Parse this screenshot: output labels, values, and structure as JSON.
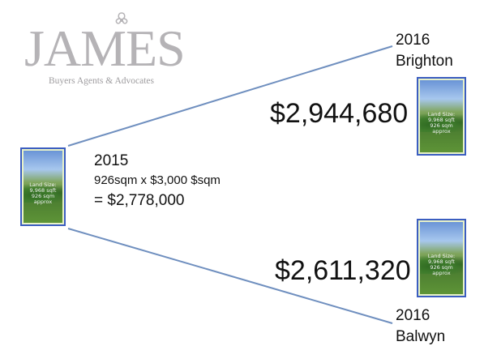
{
  "logo": {
    "wordmark": "JAMES",
    "tagline": "Buyers Agents & Advocates",
    "ornament": "ornament-icon"
  },
  "thumbnail": {
    "text_lines": [
      "Land Size:",
      "9,968 sqft",
      "926 sqm",
      "approx"
    ]
  },
  "source": {
    "year": "2015",
    "formula": "926sqm x $3,000 $sqm",
    "result": "= $2,778,000"
  },
  "branches": {
    "brighton": {
      "year": "2016",
      "suburb": "Brighton",
      "price": "$2,944,680"
    },
    "balwyn": {
      "year": "2016",
      "suburb": "Balwyn",
      "price": "$2,611,320"
    }
  },
  "colors": {
    "connector": "#6f8fbf",
    "frame": "#3b5dc0",
    "logo_grey": "#b5b3b6"
  }
}
